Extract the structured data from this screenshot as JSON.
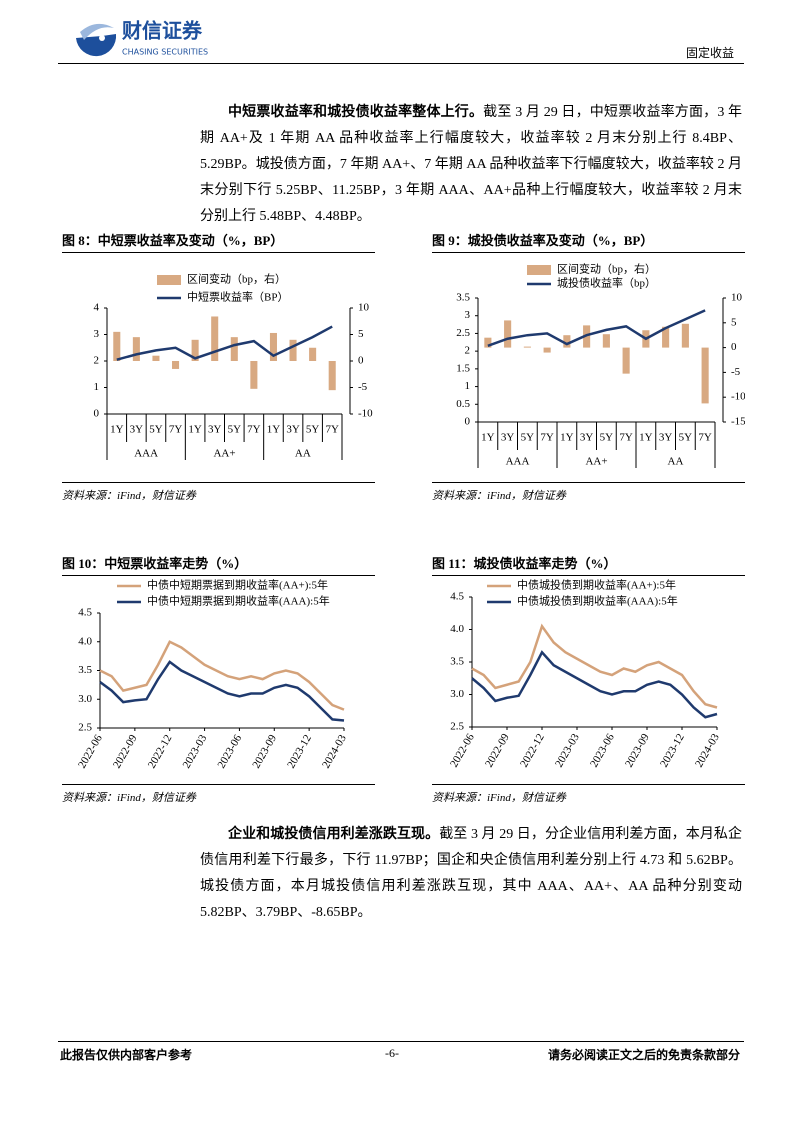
{
  "header": {
    "brand": "财信证券",
    "brand_en": "CHASING SECURITIES",
    "section": "固定收益"
  },
  "paragraphs": [
    {
      "lead": "中短票收益率和城投债收益率整体上行。",
      "body": "截至 3 月 29 日，中短票收益率方面，3 年期 AA+及 1 年期 AA 品种收益率上行幅度较大，收益率较 2 月末分别上行 8.4BP、5.29BP。城投债方面，7 年期 AA+、7 年期 AA 品种收益率下行幅度较大，收益率较 2 月末分别下行 5.25BP、11.25BP，3 年期 AAA、AA+品种上行幅度较大，收益率较 2 月末分别上行 5.48BP、4.48BP。"
    },
    {
      "lead": "企业和城投债信用利差涨跌互现。",
      "body": "截至 3 月 29 日，分企业信用利差方面，本月私企债信用利差下行最多，下行 11.97BP；国企和央企债信用利差分别上行 4.73 和 5.62BP。城投债方面，本月城投债信用利差涨跌互现，其中 AAA、AA+、AA 品种分别变动 5.82BP、3.79BP、-8.65BP。"
    }
  ],
  "chart_data": [
    {
      "type": "combo",
      "title": "图 8：中短票收益率及变动（%，BP）",
      "source": "资料来源：iFind，财信证券",
      "categories": [
        "1Y",
        "3Y",
        "5Y",
        "7Y",
        "1Y",
        "3Y",
        "5Y",
        "7Y",
        "1Y",
        "3Y",
        "5Y",
        "7Y"
      ],
      "groups": [
        "AAA",
        "AA+",
        "AA"
      ],
      "ylim": [
        0,
        4
      ],
      "yticks": [
        0,
        1,
        2,
        3,
        4
      ],
      "y2lim": [
        -10,
        10
      ],
      "y2ticks": [
        -10,
        -5,
        0,
        5,
        10
      ],
      "series": [
        {
          "name": "区间变动（bp，右）",
          "kind": "bar",
          "axis": "y2",
          "color": "#d8a982",
          "values": [
            5.5,
            4.5,
            1,
            -1.5,
            4,
            8.4,
            4.5,
            -5.25,
            5.29,
            4,
            2.5,
            -5.5
          ]
        },
        {
          "name": "中短票收益率（BP）",
          "kind": "line",
          "color": "#1f3a6e",
          "values": [
            2.05,
            2.25,
            2.4,
            2.5,
            2.1,
            2.35,
            2.6,
            2.75,
            2.2,
            2.55,
            2.9,
            3.3
          ]
        }
      ]
    },
    {
      "type": "combo",
      "title": "图 9：城投债收益率及变动（%，BP）",
      "source": "资料来源：iFind，财信证券",
      "categories": [
        "1Y",
        "3Y",
        "5Y",
        "7Y",
        "1Y",
        "3Y",
        "5Y",
        "7Y",
        "1Y",
        "3Y",
        "5Y",
        "7Y"
      ],
      "groups": [
        "AAA",
        "AA+",
        "AA"
      ],
      "ylim": [
        0,
        3.5
      ],
      "yticks": [
        0,
        0.5,
        1,
        1.5,
        2,
        2.5,
        3,
        3.5
      ],
      "y2lim": [
        -15,
        10
      ],
      "y2ticks": [
        -15,
        -10,
        -5,
        0,
        5,
        10
      ],
      "series": [
        {
          "name": "区间变动（bp，右）",
          "kind": "bar",
          "axis": "y2",
          "color": "#d8a982",
          "values": [
            2,
            5.48,
            0.2,
            -1,
            2.5,
            4.48,
            2.7,
            -5.25,
            3.5,
            4.2,
            4.8,
            -11.25
          ]
        },
        {
          "name": "城投债收益率（bp）",
          "kind": "line",
          "color": "#1f3a6e",
          "values": [
            2.15,
            2.35,
            2.45,
            2.5,
            2.2,
            2.45,
            2.6,
            2.7,
            2.35,
            2.65,
            2.9,
            3.15
          ]
        }
      ]
    },
    {
      "type": "line",
      "title": "图 10：中短票收益率走势（%）",
      "source": "资料来源：iFind，财信证券",
      "x": [
        "2022-06",
        "2022-07",
        "2022-08",
        "2022-09",
        "2022-10",
        "2022-11",
        "2022-12",
        "2023-01",
        "2023-02",
        "2023-03",
        "2023-04",
        "2023-05",
        "2023-06",
        "2023-07",
        "2023-08",
        "2023-09",
        "2023-10",
        "2023-11",
        "2023-12",
        "2024-01",
        "2024-02",
        "2024-03"
      ],
      "xlim": [
        "2022-06",
        "2024-03"
      ],
      "xticks": [
        "2022-06",
        "2022-09",
        "2022-12",
        "2023-03",
        "2023-06",
        "2023-09",
        "2023-12",
        "2024-03"
      ],
      "ylim": [
        2.5,
        4.5
      ],
      "yticks": [
        2.5,
        {
          "value": 3,
          "label": "3.0"
        },
        3.5,
        {
          "value": 4,
          "label": "4.0"
        },
        4.5
      ],
      "series": [
        {
          "name": "中债中短期票据到期收益率(AA+):5年",
          "color": "#d4a27a",
          "values": [
            3.5,
            3.4,
            3.15,
            3.2,
            3.25,
            3.6,
            4.0,
            3.9,
            3.75,
            3.6,
            3.5,
            3.4,
            3.35,
            3.4,
            3.35,
            3.45,
            3.5,
            3.45,
            3.3,
            3.1,
            2.9,
            2.82
          ]
        },
        {
          "name": "中债中短期票据到期收益率(AAA):5年",
          "color": "#1f3a6e",
          "values": [
            3.3,
            3.15,
            2.95,
            2.98,
            3.0,
            3.35,
            3.65,
            3.5,
            3.4,
            3.3,
            3.2,
            3.1,
            3.05,
            3.1,
            3.1,
            3.2,
            3.25,
            3.2,
            3.05,
            2.85,
            2.65,
            2.63
          ]
        }
      ]
    },
    {
      "type": "line",
      "title": "图 11：城投债收益率走势（%）",
      "source": "资料来源：iFind，财信证券",
      "x": [
        "2022-06",
        "2022-07",
        "2022-08",
        "2022-09",
        "2022-10",
        "2022-11",
        "2022-12",
        "2023-01",
        "2023-02",
        "2023-03",
        "2023-04",
        "2023-05",
        "2023-06",
        "2023-07",
        "2023-08",
        "2023-09",
        "2023-10",
        "2023-11",
        "2023-12",
        "2024-01",
        "2024-02",
        "2024-03"
      ],
      "xlim": [
        "2022-06",
        "2024-03"
      ],
      "xticks": [
        "2022-06",
        "2022-09",
        "2022-12",
        "2023-03",
        "2023-06",
        "2023-09",
        "2023-12",
        "2024-03"
      ],
      "ylim": [
        2.5,
        4.5
      ],
      "yticks": [
        2.5,
        {
          "value": 3,
          "label": "3.0"
        },
        3.5,
        {
          "value": 4,
          "label": "4.0"
        },
        4.5
      ],
      "series": [
        {
          "name": "中债城投债到期收益率(AA+):5年",
          "color": "#d4a27a",
          "values": [
            3.4,
            3.3,
            3.1,
            3.15,
            3.2,
            3.5,
            4.05,
            3.8,
            3.65,
            3.55,
            3.45,
            3.35,
            3.3,
            3.4,
            3.35,
            3.45,
            3.5,
            3.4,
            3.3,
            3.05,
            2.85,
            2.8
          ]
        },
        {
          "name": "中债城投债到期收益率(AAA):5年",
          "color": "#1f3a6e",
          "values": [
            3.25,
            3.1,
            2.9,
            2.95,
            2.98,
            3.3,
            3.65,
            3.45,
            3.35,
            3.25,
            3.15,
            3.05,
            3.0,
            3.05,
            3.05,
            3.15,
            3.2,
            3.15,
            3.0,
            2.8,
            2.65,
            2.7
          ]
        }
      ]
    }
  ],
  "footer": {
    "left": "此报告仅供内部客户参考",
    "page": "-6-",
    "right": "请务必阅读正文之后的免责条款部分"
  }
}
